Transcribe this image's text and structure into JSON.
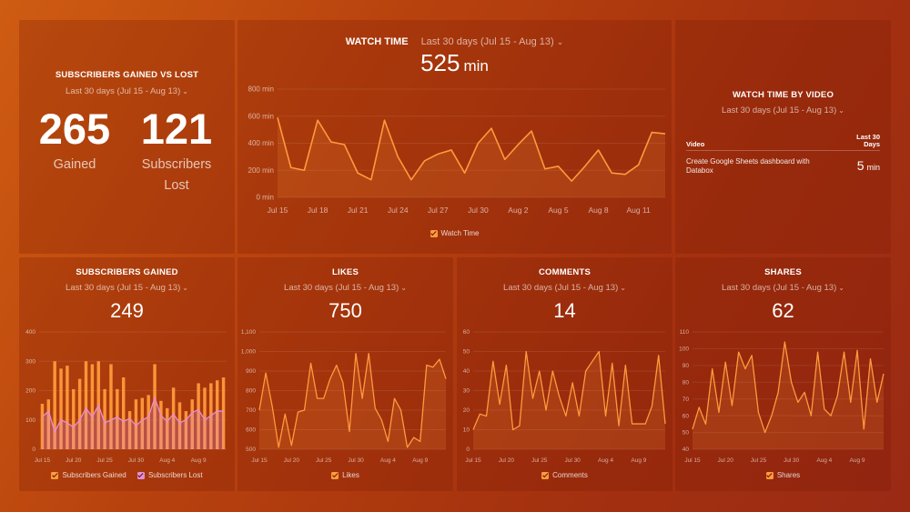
{
  "colors": {
    "accent": "#ff9a3c",
    "lost": "#e38fd6"
  },
  "subs_gained_vs_lost": {
    "title": "SUBSCRIBERS GAINED VS LOST",
    "range": "Last 30 days (Jul 15 - Aug 13)",
    "gained_value": "265",
    "gained_label": "Gained",
    "lost_value": "121",
    "lost_label": "Subscribers Lost"
  },
  "watch_time": {
    "title": "WATCH TIME",
    "range": "Last 30 days (Jul 15 - Aug 13)",
    "value": "525",
    "unit": "min",
    "legend": "Watch Time"
  },
  "watch_time_by_video": {
    "title": "WATCH TIME BY VIDEO",
    "range": "Last 30 days (Jul 15 - Aug 13)",
    "col_video": "Video",
    "col_last30_line1": "Last 30",
    "col_last30_line2": "Days",
    "row_video_line1": "Create Google Sheets dashboard with",
    "row_video_line2": "Databox",
    "row_value": "5",
    "row_unit": "min"
  },
  "subs_gained": {
    "title": "SUBSCRIBERS GAINED",
    "range": "Last 30 days (Jul 15 - Aug 13)",
    "value": "249",
    "legend_gained": "Subscribers Gained",
    "legend_lost": "Subscribers Lost"
  },
  "likes": {
    "title": "LIKES",
    "range": "Last 30 days (Jul 15 - Aug 13)",
    "value": "750",
    "legend": "Likes"
  },
  "comments": {
    "title": "COMMENTS",
    "range": "Last 30 days (Jul 15 - Aug 13)",
    "value": "14",
    "legend": "Comments"
  },
  "shares": {
    "title": "SHARES",
    "range": "Last 30 days (Jul 15 - Aug 13)",
    "value": "62",
    "legend": "Shares"
  },
  "chart_data": [
    {
      "id": "watch_time",
      "type": "area",
      "title": "WATCH TIME",
      "y_ticks": [
        "0 min",
        "200 min",
        "400 min",
        "600 min",
        "800 min"
      ],
      "ylim": [
        0,
        800
      ],
      "x_ticks": [
        "Jul 15",
        "Jul 18",
        "Jul 21",
        "Jul 24",
        "Jul 27",
        "Jul 30",
        "Aug 2",
        "Aug 5",
        "Aug 8",
        "Aug 11"
      ],
      "series": [
        {
          "name": "Watch Time",
          "values": [
            590,
            220,
            200,
            570,
            410,
            390,
            180,
            130,
            570,
            300,
            130,
            270,
            320,
            350,
            180,
            400,
            510,
            280,
            390,
            490,
            210,
            230,
            120,
            230,
            350,
            180,
            170,
            240,
            480,
            470
          ]
        }
      ]
    },
    {
      "id": "subs_gained",
      "type": "bar",
      "title": "SUBSCRIBERS GAINED",
      "y_ticks": [
        "0",
        "100",
        "200",
        "300",
        "400"
      ],
      "ylim": [
        0,
        400
      ],
      "x_ticks": [
        "Jul 15",
        "Jul 20",
        "Jul 25",
        "Jul 30",
        "Aug 4",
        "Aug 9"
      ],
      "series": [
        {
          "name": "Subscribers Gained",
          "values": [
            155,
            170,
            300,
            275,
            285,
            205,
            240,
            300,
            290,
            300,
            205,
            290,
            205,
            245,
            130,
            170,
            175,
            185,
            290,
            165,
            140,
            210,
            160,
            130,
            170,
            225,
            210,
            225,
            235,
            245
          ]
        },
        {
          "name": "Subscribers Lost",
          "values": [
            110,
            130,
            60,
            100,
            90,
            75,
            100,
            140,
            110,
            150,
            90,
            100,
            110,
            95,
            105,
            80,
            100,
            110,
            175,
            115,
            95,
            120,
            90,
            100,
            125,
            135,
            100,
            115,
            130,
            130
          ]
        }
      ]
    },
    {
      "id": "likes",
      "type": "area",
      "title": "LIKES",
      "y_ticks": [
        "500",
        "600",
        "700",
        "800",
        "900",
        "1,000",
        "1,100"
      ],
      "ylim": [
        500,
        1100
      ],
      "x_ticks": [
        "Jul 15",
        "Jul 20",
        "Jul 25",
        "Jul 30",
        "Aug 4",
        "Aug 9"
      ],
      "series": [
        {
          "name": "Likes",
          "values": [
            700,
            890,
            720,
            510,
            680,
            520,
            690,
            700,
            940,
            760,
            760,
            860,
            930,
            840,
            590,
            990,
            760,
            990,
            710,
            650,
            540,
            760,
            700,
            510,
            560,
            540,
            930,
            920,
            960,
            860
          ]
        }
      ]
    },
    {
      "id": "comments",
      "type": "area",
      "title": "COMMENTS",
      "y_ticks": [
        "0",
        "10",
        "20",
        "30",
        "40",
        "50",
        "60"
      ],
      "ylim": [
        0,
        60
      ],
      "x_ticks": [
        "Jul 15",
        "Jul 20",
        "Jul 25",
        "Jul 30",
        "Aug 4",
        "Aug 9"
      ],
      "series": [
        {
          "name": "Comments",
          "values": [
            10,
            18,
            17,
            45,
            23,
            43,
            10,
            12,
            50,
            26,
            40,
            20,
            40,
            27,
            17,
            34,
            17,
            40,
            45,
            50,
            17,
            44,
            12,
            43,
            13,
            13,
            13,
            22,
            48,
            13
          ]
        }
      ]
    },
    {
      "id": "shares",
      "type": "area",
      "title": "SHARES",
      "y_ticks": [
        "40",
        "50",
        "60",
        "70",
        "80",
        "90",
        "100",
        "110"
      ],
      "ylim": [
        40,
        110
      ],
      "x_ticks": [
        "Jul 15",
        "Jul 20",
        "Jul 25",
        "Jul 30",
        "Aug 4",
        "Aug 9"
      ],
      "series": [
        {
          "name": "Shares",
          "values": [
            52,
            65,
            55,
            88,
            62,
            92,
            66,
            98,
            88,
            96,
            62,
            50,
            60,
            74,
            104,
            80,
            68,
            74,
            60,
            98,
            64,
            60,
            72,
            98,
            68,
            99,
            52,
            94,
            68,
            85
          ]
        }
      ]
    }
  ]
}
